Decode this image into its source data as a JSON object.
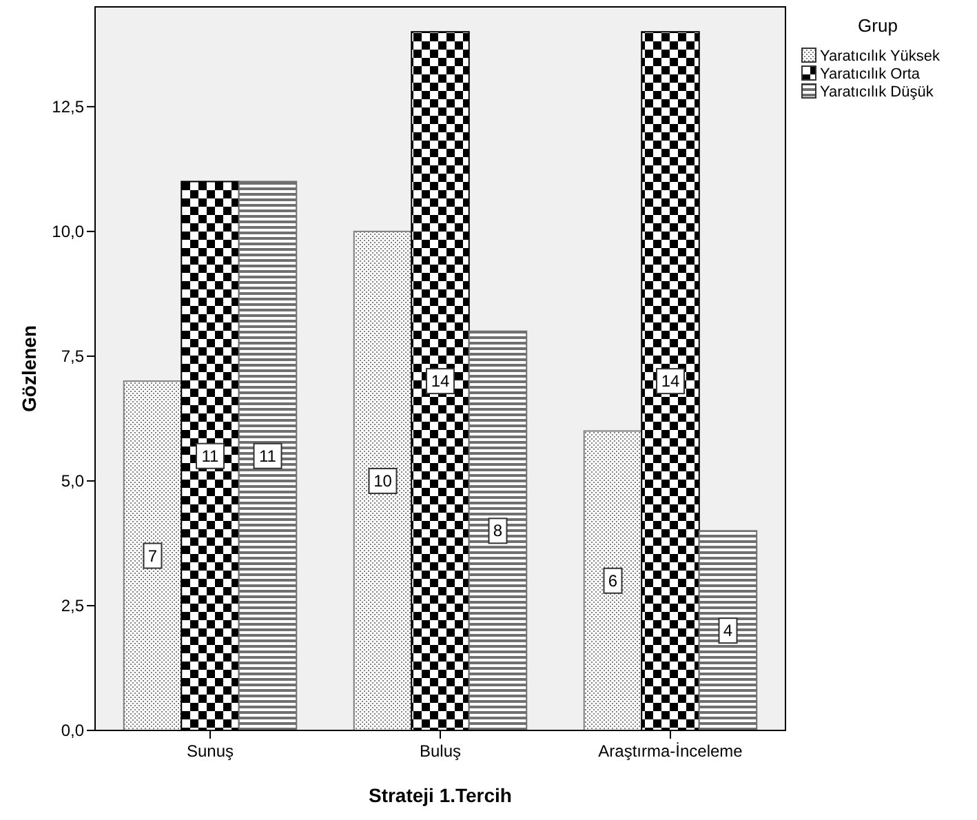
{
  "chart_data": {
    "type": "bar",
    "xlabel": "Strateji 1.Tercih",
    "ylabel": "Gözlenen",
    "legend_title": "Grup",
    "categories": [
      "Sunuş",
      "Buluş",
      "Araştırma-İnceleme"
    ],
    "series": [
      {
        "name": "Yaratıcılık Yüksek",
        "color": "#808080",
        "values": [
          7,
          10,
          6
        ]
      },
      {
        "name": "Yaratıcılık Orta",
        "color": "#000000",
        "values": [
          11,
          14,
          14
        ]
      },
      {
        "name": "Yaratıcılık Düşük",
        "color": "#707070",
        "values": [
          11,
          8,
          4
        ]
      }
    ],
    "ylim": [
      0,
      14.5
    ],
    "yticks": [
      {
        "value": 0,
        "label": "0,0"
      },
      {
        "value": 2.5,
        "label": "2,5"
      },
      {
        "value": 5,
        "label": "5,0"
      },
      {
        "value": 7.5,
        "label": "7,5"
      },
      {
        "value": 10,
        "label": "10,0"
      },
      {
        "value": 12.5,
        "label": "12,5"
      }
    ],
    "data_labels": true,
    "grid": false,
    "legend": "top right"
  }
}
